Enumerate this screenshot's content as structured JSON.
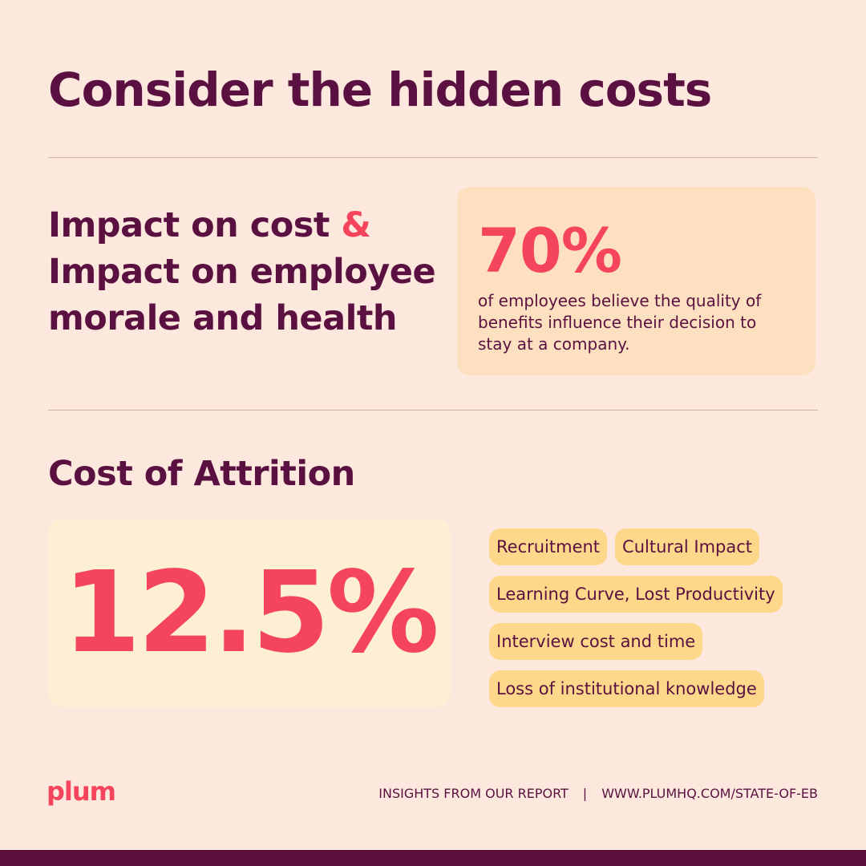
{
  "title": "Consider the hidden costs",
  "section_1": {
    "heading": {
      "part_1": "Impact on cost",
      "ampersand": "&",
      "part_2": "Impact on employee morale and health"
    },
    "stat": {
      "value": "70%",
      "description": "of employees believe the quality of benefits influence their decision to stay at a company."
    }
  },
  "section_2": {
    "heading": "Cost of Attrition",
    "stat": "12.5%",
    "tags": [
      "Recruitment",
      "Cultural Impact",
      "Learning Curve, Lost Productivity",
      "Interview cost and time",
      "Loss of institutional knowledge"
    ]
  },
  "footer": {
    "logo": "plum",
    "label": "INSIGHTS FROM OUR REPORT",
    "separator": "|",
    "url": "WWW.PLUMHQ.COM/STATE-OF-EB"
  }
}
